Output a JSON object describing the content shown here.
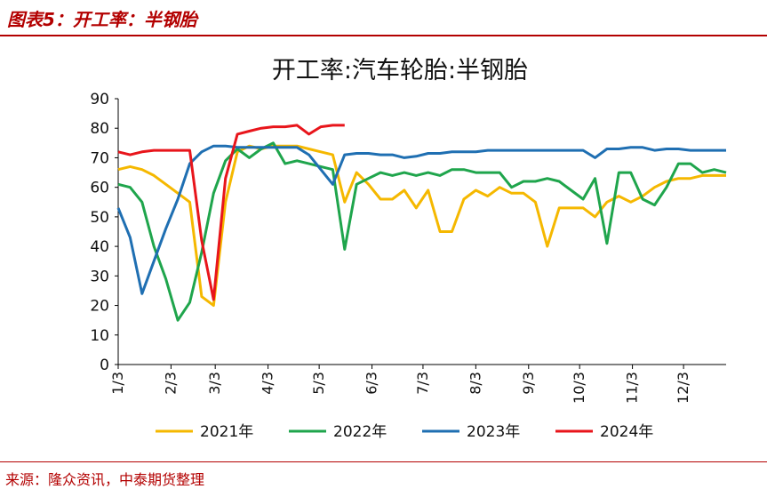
{
  "header": {
    "title": "图表5：开工率：半钢胎"
  },
  "footer": {
    "source": "来源：隆众资讯，中泰期货整理"
  },
  "colors": {
    "accent": "#b30000",
    "s2021": "#f5b800",
    "s2022": "#1fa54c",
    "s2023": "#1f6fb2",
    "s2024": "#e8151b"
  },
  "chart_data": {
    "type": "line",
    "title": "开工率:汽车轮胎:半钢胎",
    "xlabel": "",
    "ylabel": "",
    "x_weeks": 52,
    "ylim": [
      0,
      90
    ],
    "yticks": [
      "0",
      "10",
      "20",
      "30",
      "40",
      "50",
      "60",
      "70",
      "80",
      "90"
    ],
    "xtick_labels": [
      {
        "label": "1/3",
        "week": 0
      },
      {
        "label": "2/3",
        "week": 4.43
      },
      {
        "label": "3/3",
        "week": 8.14
      },
      {
        "label": "4/3",
        "week": 12.57
      },
      {
        "label": "5/3",
        "week": 16.86
      },
      {
        "label": "6/3",
        "week": 21.29
      },
      {
        "label": "7/3",
        "week": 25.57
      },
      {
        "label": "8/3",
        "week": 30.0
      },
      {
        "label": "9/3",
        "week": 34.43
      },
      {
        "label": "10/3",
        "week": 38.71
      },
      {
        "label": "11/3",
        "week": 43.14
      },
      {
        "label": "12/3",
        "week": 47.43
      }
    ],
    "legend_position": "bottom",
    "series": [
      {
        "name": "2021年",
        "color": "#f5b800",
        "values": [
          66,
          67,
          66,
          64,
          61,
          58,
          55,
          23,
          20,
          55,
          72,
          74,
          73,
          74,
          74,
          74,
          73,
          72,
          71,
          55,
          65,
          61,
          56,
          56,
          59,
          53,
          59,
          45,
          45,
          56,
          59,
          57,
          60,
          58,
          58,
          55,
          40,
          53,
          53,
          53,
          50,
          55,
          57,
          55,
          57,
          60,
          62,
          63,
          63,
          64,
          64,
          64
        ]
      },
      {
        "name": "2022年",
        "color": "#1fa54c",
        "values": [
          61,
          60,
          55,
          40,
          29,
          15,
          21,
          38,
          58,
          69,
          73,
          70,
          73,
          75,
          68,
          69,
          68,
          67,
          66,
          39,
          61,
          63,
          65,
          64,
          65,
          64,
          65,
          64,
          66,
          66,
          65,
          65,
          65,
          60,
          62,
          62,
          63,
          62,
          59,
          56,
          63,
          41,
          65,
          65,
          56,
          54,
          60,
          68,
          68,
          65,
          66,
          65
        ]
      },
      {
        "name": "2023年",
        "color": "#1f6fb2",
        "values": [
          53,
          43,
          24,
          35,
          46,
          56,
          68,
          72,
          74,
          74,
          73.5,
          73.5,
          73.5,
          73.5,
          73.5,
          73.5,
          71,
          66,
          61,
          71,
          71.5,
          71.5,
          71,
          71,
          70,
          70.5,
          71.5,
          71.5,
          72,
          72,
          72,
          72.5,
          72.5,
          72.5,
          72.5,
          72.5,
          72.5,
          72.5,
          72.5,
          72.5,
          70,
          73,
          73,
          73.5,
          73.5,
          72.5,
          73,
          73,
          72.5,
          72.5,
          72.5,
          72.5
        ]
      },
      {
        "name": "2024年",
        "color": "#e8151b",
        "values": [
          72,
          71,
          72,
          72.5,
          72.5,
          72.5,
          72.5,
          42,
          22,
          63,
          78,
          79,
          80,
          80.5,
          80.5,
          81,
          78,
          80.5,
          81,
          81
        ]
      }
    ]
  }
}
